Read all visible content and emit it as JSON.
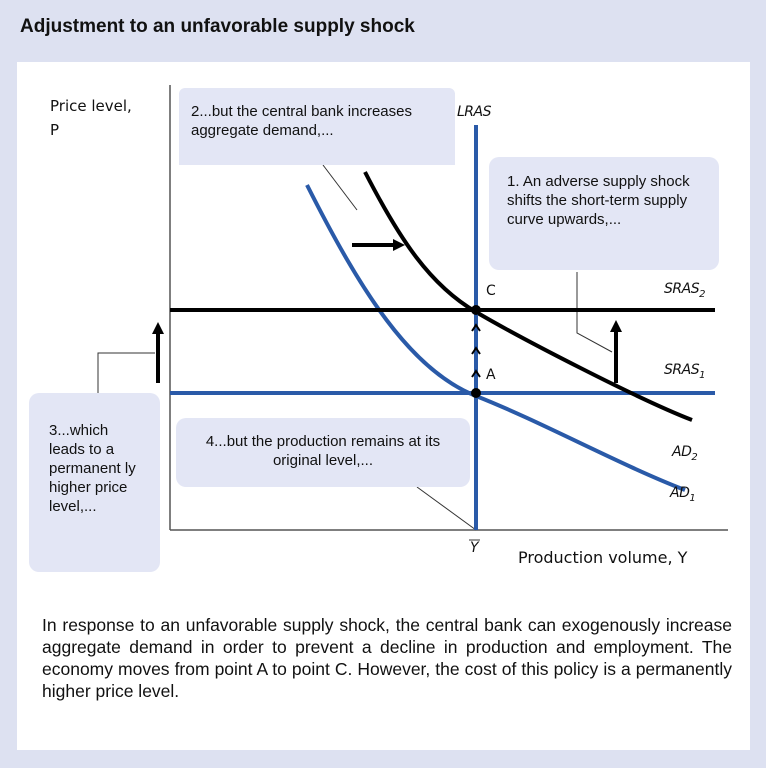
{
  "title": "Adjustment to an unfavorable supply shock",
  "diagram": {
    "y_axis_label_line1": "Price level,",
    "y_axis_label_line2": "P",
    "x_axis_label": "Production volume, Y",
    "x_tick": "Y",
    "curves": {
      "lras": "LRAS",
      "sras2": "SRAS",
      "sras2_sub": "2",
      "sras1": "SRAS",
      "sras1_sub": "1",
      "ad2": "AD",
      "ad2_sub": "2",
      "ad1": "AD",
      "ad1_sub": "1"
    },
    "points": {
      "c": "C",
      "a": "A"
    },
    "colors": {
      "blue": "#2a5aa8",
      "black": "#000000",
      "callout": "#e3e6f5",
      "background": "#dde1f1"
    },
    "callouts": {
      "step1": "1. An adverse supply shock shifts the short-term supply curve upwards,...",
      "step2": "2...but the central bank increases aggregate demand,...",
      "step3": "3...which leads to a permanent ly higher price level,...",
      "step4": "4...but the production remains at its original level,..."
    }
  },
  "caption": "In response to an unfavorable supply shock, the central bank can exogenously increase aggregate demand in order to prevent a decline in production and employment. The economy moves from point A to point C. However, the cost of this policy is a permanently higher price level."
}
